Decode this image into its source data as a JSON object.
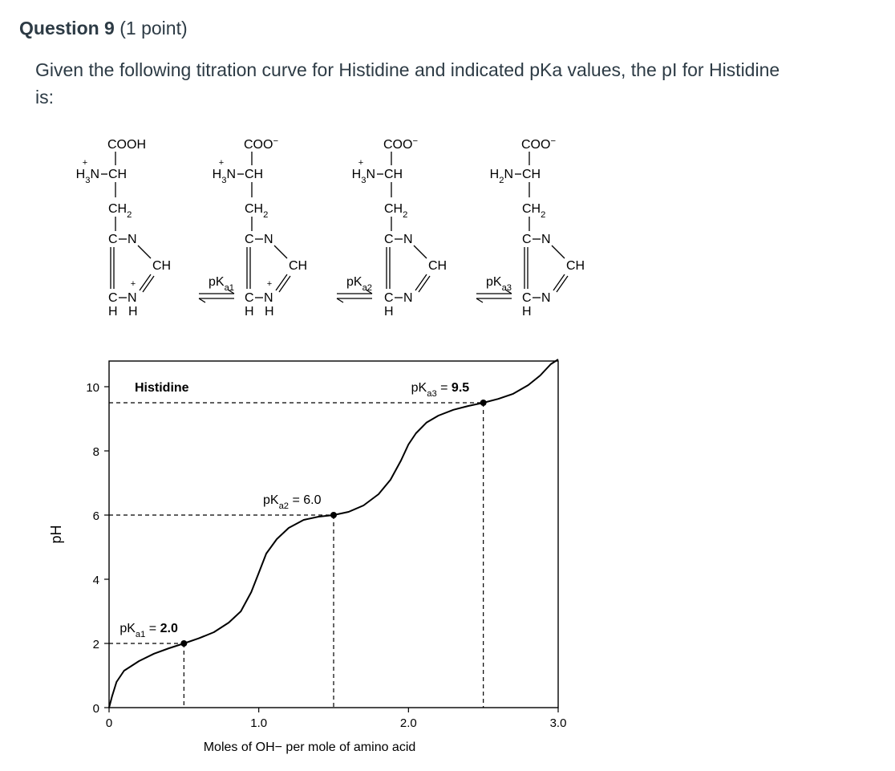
{
  "question": {
    "number_label": "Question 9",
    "points_label": "(1 point)",
    "prompt": "Given the following titration curve for Histidine and indicated pKa values, the pI for Histidine is:"
  },
  "structures": [
    {
      "carboxyl": "COOH",
      "amine": "H3N",
      "amine_charge": "+",
      "backbone": "CH",
      "sidechain": "CH2",
      "ring_nh_charge": "+"
    },
    {
      "carboxyl": "COO",
      "carboxyl_charge": "−",
      "amine": "H3N",
      "amine_charge": "+",
      "backbone": "CH",
      "sidechain": "CH2",
      "ring_nh_charge": "+"
    },
    {
      "carboxyl": "COO",
      "carboxyl_charge": "−",
      "amine": "H3N",
      "amine_charge": "+",
      "backbone": "CH",
      "sidechain": "CH2"
    },
    {
      "carboxyl": "COO",
      "carboxyl_charge": "−",
      "amine": "H2N",
      "backbone": "CH",
      "sidechain": "CH2"
    }
  ],
  "equilibria": [
    "pKa1",
    "pKa2",
    "pKa3"
  ],
  "chart_data": {
    "type": "line",
    "title": "Histidine",
    "xlabel": "Moles of OH− per mole of amino acid",
    "ylabel": "pH",
    "xlim": [
      0,
      3.0
    ],
    "ylim": [
      0,
      10.8
    ],
    "x_ticks": [
      {
        "value": 0,
        "label": "0"
      },
      {
        "value": 1.0,
        "label": "1.0"
      },
      {
        "value": 2.0,
        "label": "2.0"
      },
      {
        "value": 3.0,
        "label": "3.0"
      }
    ],
    "y_ticks": [
      {
        "value": 0,
        "label": "0"
      },
      {
        "value": 2,
        "label": "2"
      },
      {
        "value": 4,
        "label": "4"
      },
      {
        "value": 6,
        "label": "6"
      },
      {
        "value": 8,
        "label": "8"
      },
      {
        "value": 10,
        "label": "10"
      }
    ],
    "curve": {
      "x": [
        0.0,
        0.02,
        0.05,
        0.1,
        0.2,
        0.3,
        0.4,
        0.5,
        0.6,
        0.7,
        0.8,
        0.88,
        0.95,
        1.0,
        1.05,
        1.12,
        1.2,
        1.3,
        1.4,
        1.5,
        1.6,
        1.7,
        1.8,
        1.88,
        1.95,
        2.0,
        2.05,
        2.12,
        2.2,
        2.3,
        2.4,
        2.5,
        2.6,
        2.7,
        2.8,
        2.88,
        2.95,
        3.0
      ],
      "y": [
        0.0,
        0.35,
        0.8,
        1.15,
        1.45,
        1.68,
        1.85,
        2.0,
        2.16,
        2.35,
        2.65,
        3.0,
        3.6,
        4.2,
        4.8,
        5.25,
        5.6,
        5.85,
        5.95,
        6.0,
        6.1,
        6.3,
        6.65,
        7.1,
        7.7,
        8.2,
        8.55,
        8.88,
        9.1,
        9.28,
        9.4,
        9.5,
        9.62,
        9.78,
        10.05,
        10.35,
        10.7,
        10.85
      ]
    },
    "points": [
      {
        "name": "pKa1",
        "x": 0.5,
        "y": 2.0,
        "label_key": "pKa1",
        "value_label": "2.0"
      },
      {
        "name": "pKa2",
        "x": 1.5,
        "y": 6.0,
        "label_key": "pKa2",
        "value_label": "6.0"
      },
      {
        "name": "pKa3",
        "x": 2.5,
        "y": 9.5,
        "label_key": "pKa3",
        "value_label": "9.5"
      }
    ],
    "colors": {
      "curve": "#000000",
      "guides": "#000000"
    }
  }
}
